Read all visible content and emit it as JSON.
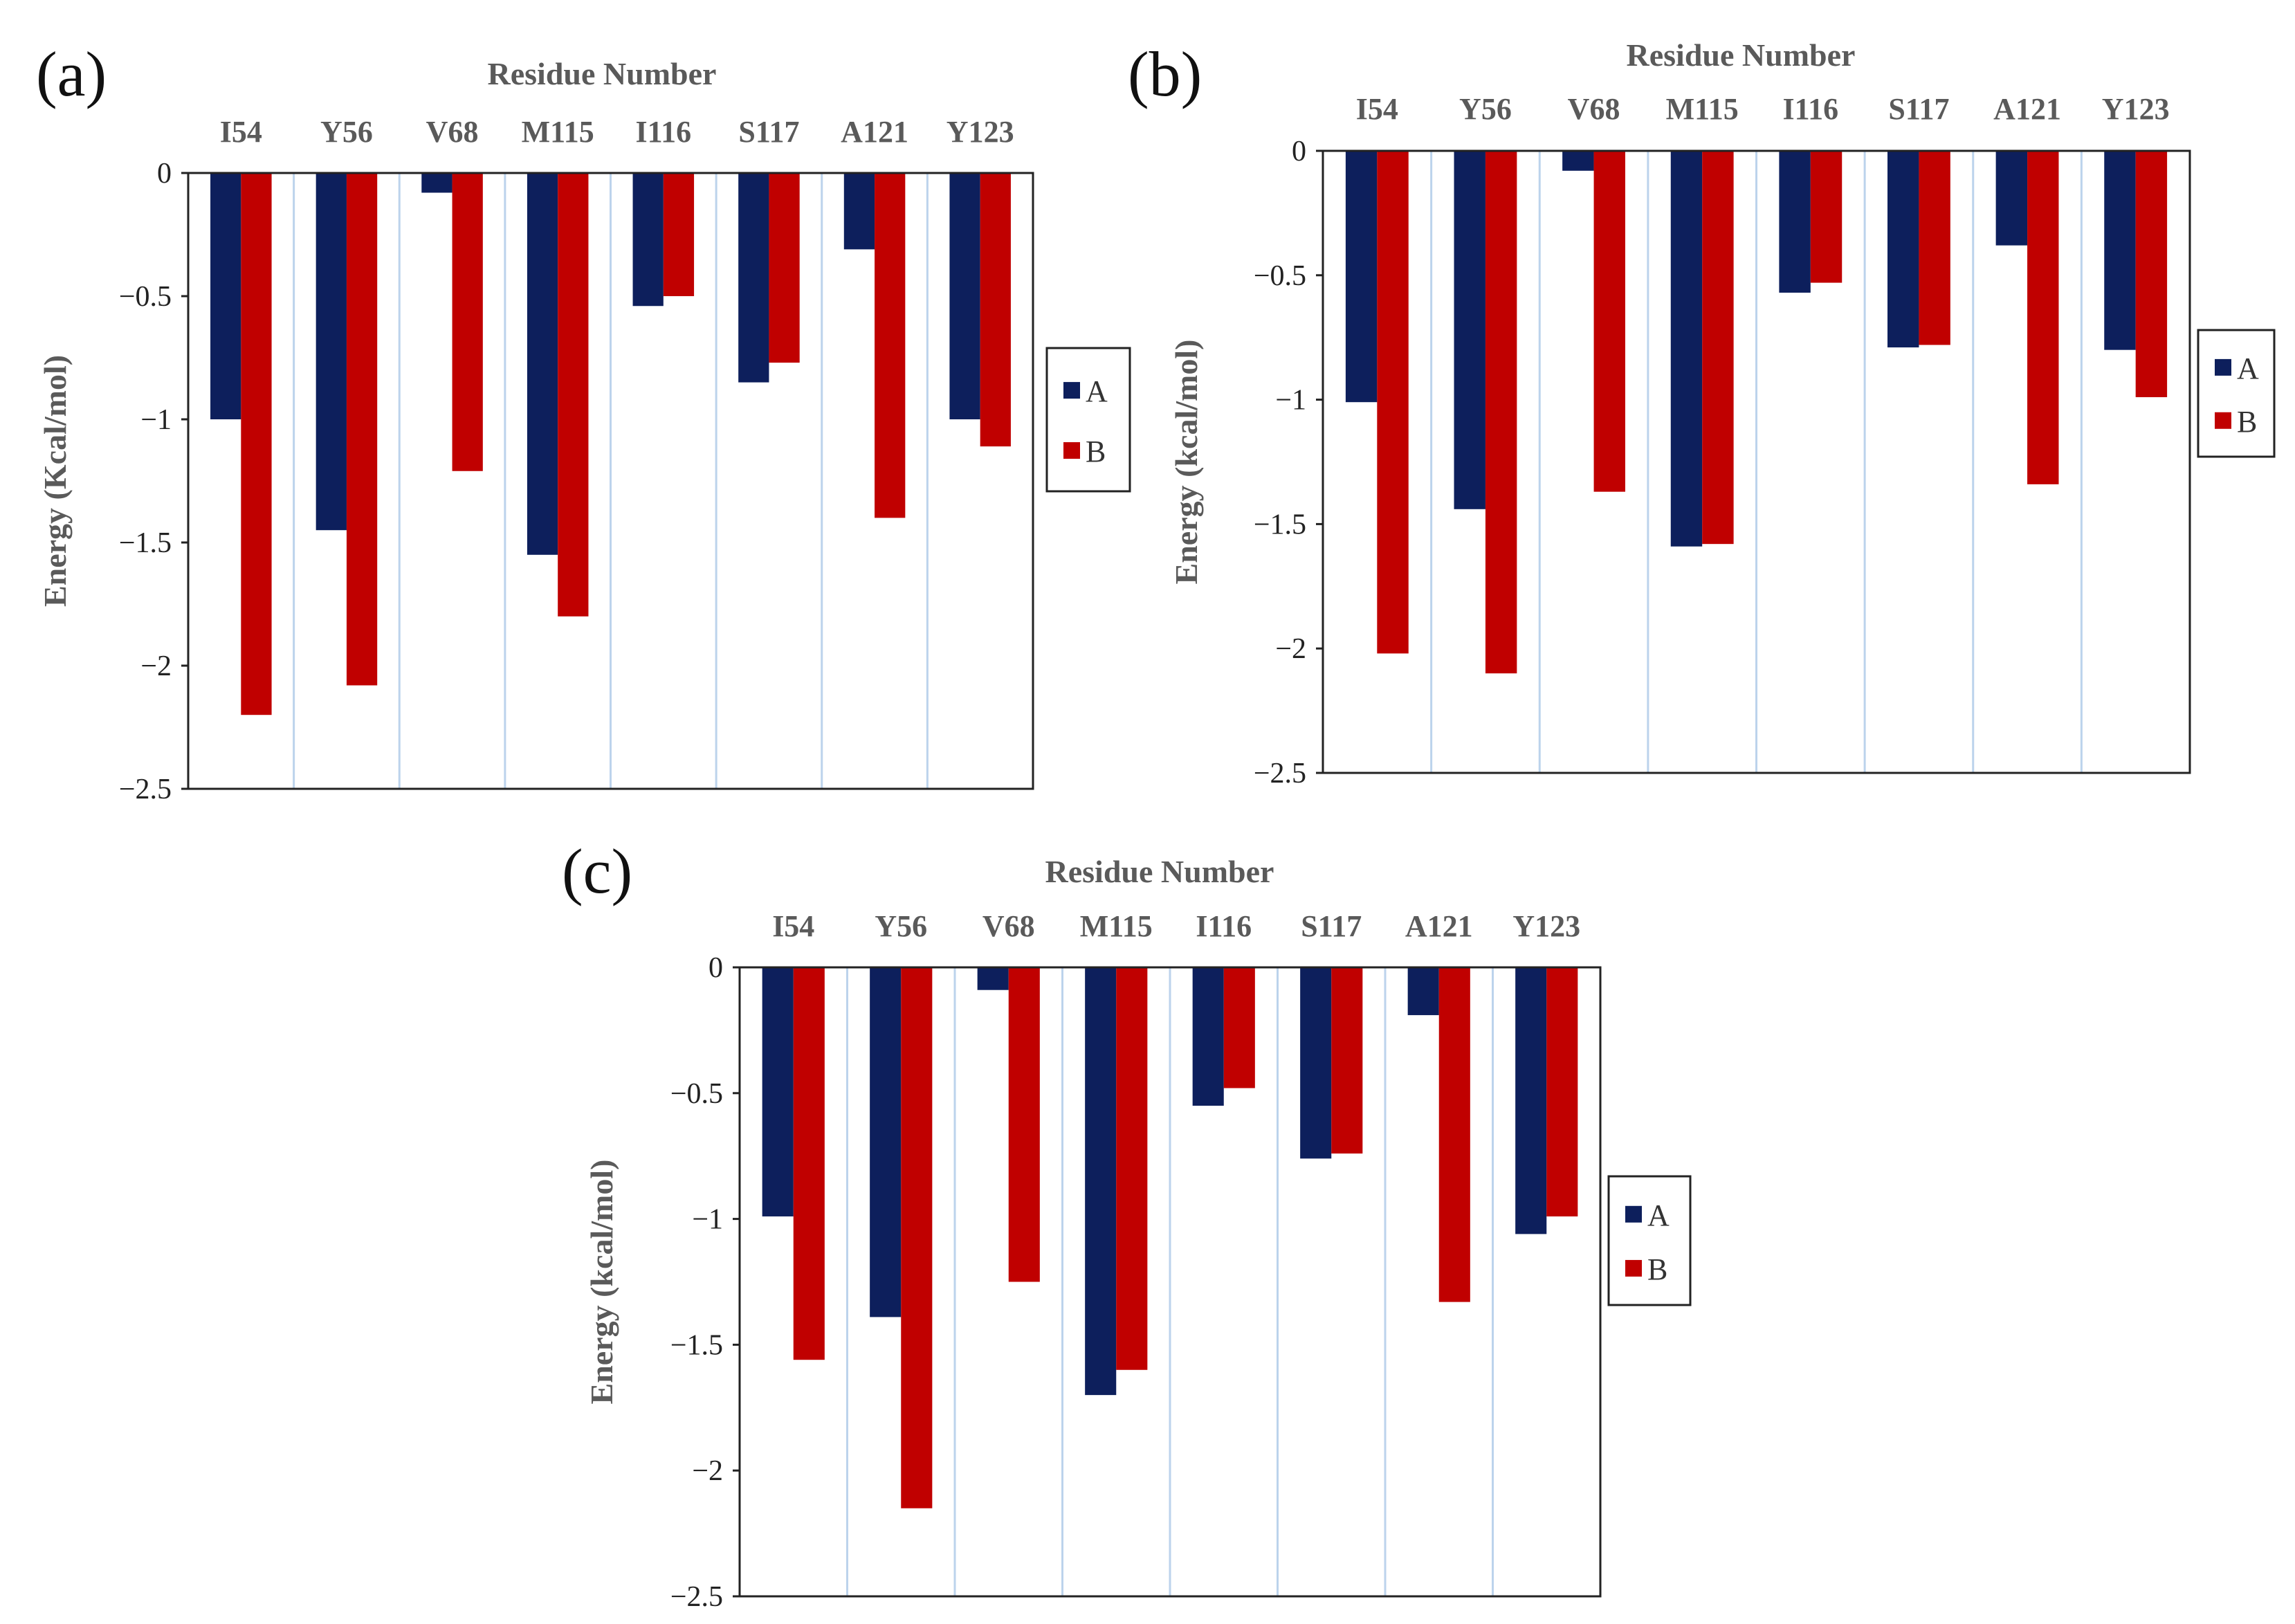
{
  "colors": {
    "A": "#0d1f5c",
    "B": "#c00000",
    "separator": "#bcd3ec",
    "frame": "#222222"
  },
  "chart_data": [
    {
      "panel": "(a)",
      "type": "bar",
      "title": "Residue Number",
      "ylabel": "Energy (Kcal/mol)",
      "ylim": [
        -2.5,
        0
      ],
      "yticks": [
        0,
        -0.5,
        -1,
        -1.5,
        -2,
        -2.5
      ],
      "ytick_labels": [
        "0",
        "−0.5",
        "−1",
        "−1.5",
        "−2",
        "−2.5"
      ],
      "categories": [
        "I54",
        "Y56",
        "V68",
        "M115",
        "I116",
        "S117",
        "A121",
        "Y123"
      ],
      "series": [
        {
          "name": "A",
          "values": [
            -1.0,
            -1.45,
            -0.08,
            -1.55,
            -0.54,
            -0.85,
            -0.31,
            -1.0
          ]
        },
        {
          "name": "B",
          "values": [
            -2.2,
            -2.08,
            -1.21,
            -1.8,
            -0.5,
            -0.77,
            -1.4,
            -1.11
          ]
        }
      ],
      "legend": [
        "A",
        "B"
      ]
    },
    {
      "panel": "(b)",
      "type": "bar",
      "title": "Residue Number",
      "ylabel": "Energy (kcal/mol)",
      "ylim": [
        -2.5,
        0
      ],
      "yticks": [
        0,
        -0.5,
        -1,
        -1.5,
        -2,
        -2.5
      ],
      "ytick_labels": [
        "0",
        "−0.5",
        "−1",
        "−1.5",
        "−2",
        "−2.5"
      ],
      "categories": [
        "I54",
        "Y56",
        "V68",
        "M115",
        "I116",
        "S117",
        "A121",
        "Y123"
      ],
      "series": [
        {
          "name": "A",
          "values": [
            -1.01,
            -1.44,
            -0.08,
            -1.59,
            -0.57,
            -0.79,
            -0.38,
            -0.8
          ]
        },
        {
          "name": "B",
          "values": [
            -2.02,
            -2.1,
            -1.37,
            -1.58,
            -0.53,
            -0.78,
            -1.34,
            -0.99
          ]
        }
      ],
      "legend": [
        "A",
        "B"
      ]
    },
    {
      "panel": "(c)",
      "type": "bar",
      "title": "Residue Number",
      "ylabel": "Energy (kcal/mol)",
      "ylim": [
        -2.5,
        0
      ],
      "yticks": [
        0,
        -0.5,
        -1,
        -1.5,
        -2,
        -2.5
      ],
      "ytick_labels": [
        "0",
        "−0.5",
        "−1",
        "−1.5",
        "−2",
        "−2.5"
      ],
      "categories": [
        "I54",
        "Y56",
        "V68",
        "M115",
        "I116",
        "S117",
        "A121",
        "Y123"
      ],
      "series": [
        {
          "name": "A",
          "values": [
            -0.99,
            -1.39,
            -0.09,
            -1.7,
            -0.55,
            -0.76,
            -0.19,
            -1.06
          ]
        },
        {
          "name": "B",
          "values": [
            -1.56,
            -2.15,
            -1.25,
            -1.6,
            -0.48,
            -0.74,
            -1.33,
            -0.99
          ]
        }
      ],
      "legend": [
        "A",
        "B"
      ]
    }
  ]
}
